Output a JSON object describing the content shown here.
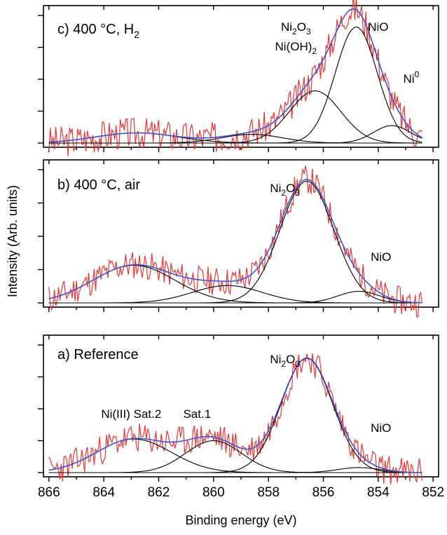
{
  "figure": {
    "xlabel": "Binding energy (eV)",
    "ylabel": "Intensity (Arb. units)"
  },
  "chart_data": [
    {
      "type": "line",
      "panel_label": "c) 400 °C, H",
      "panel_label_sub": "2",
      "xlim": [
        866.2,
        851.8
      ],
      "x_ticks": [
        866,
        864,
        862,
        860,
        858,
        856,
        854,
        852
      ],
      "x_tick_labels": [
        "",
        "",
        "",
        "",
        "",
        "",
        "",
        ""
      ],
      "background": 0.0,
      "peak_max": 4.4,
      "noise_amp": 0.55,
      "noise_seed": 3,
      "series": [
        {
          "center": 854.8,
          "height": 4.0,
          "fwhm": 1.8
        },
        {
          "center": 856.3,
          "height": 1.8,
          "fwhm": 2.2
        },
        {
          "center": 853.5,
          "height": 0.6,
          "fwhm": 1.6
        },
        {
          "center": 858.6,
          "height": 0.3,
          "fwhm": 2.6
        },
        {
          "center": 862.8,
          "height": 0.35,
          "fwhm": 3.5
        }
      ],
      "annotations": [
        {
          "text": "Ni",
          "sub": "2",
          "text2": "O",
          "sub2": "3",
          "x": 857.0,
          "row": 0
        },
        {
          "text": "Ni(OH)",
          "sub": "2",
          "x": 857.0,
          "row": 1
        },
        {
          "text": "NiO",
          "x": 854.0,
          "row": 0
        },
        {
          "text": "Ni",
          "sup": "0",
          "x": 852.8,
          "row": 2
        }
      ]
    },
    {
      "type": "line",
      "panel_label": "b) 400 °C, air",
      "xlim": [
        866.2,
        851.8
      ],
      "x_ticks": [
        866,
        864,
        862,
        860,
        858,
        856,
        854,
        852
      ],
      "x_tick_labels": [
        "",
        "",
        "",
        "",
        "",
        "",
        "",
        ""
      ],
      "background": 0.0,
      "peak_max": 4.6,
      "noise_amp": 0.5,
      "noise_seed": 11,
      "series": [
        {
          "center": 856.6,
          "height": 4.2,
          "fwhm": 2.3
        },
        {
          "center": 854.7,
          "height": 0.4,
          "fwhm": 1.8
        },
        {
          "center": 859.5,
          "height": 0.6,
          "fwhm": 3.0
        },
        {
          "center": 862.9,
          "height": 1.3,
          "fwhm": 3.5
        }
      ],
      "annotations": [
        {
          "text": "Ni",
          "sub": "2",
          "text2": "O",
          "sub2": "3",
          "x": 857.4,
          "row": 0
        },
        {
          "text": "NiO",
          "x": 853.9,
          "row": 1
        }
      ]
    },
    {
      "type": "line",
      "panel_label": "a) Reference",
      "xlim": [
        866.2,
        851.8
      ],
      "x_ticks": [
        866,
        864,
        862,
        860,
        858,
        856,
        854,
        852
      ],
      "x_tick_labels": [
        "866",
        "864",
        "862",
        "860",
        "858",
        "856",
        "854",
        "852"
      ],
      "background": 0.0,
      "peak_max": 3.8,
      "noise_amp": 0.45,
      "noise_seed": 23,
      "series": [
        {
          "center": 856.6,
          "height": 3.4,
          "fwhm": 2.2
        },
        {
          "center": 854.7,
          "height": 0.15,
          "fwhm": 1.8
        },
        {
          "center": 860.0,
          "height": 0.95,
          "fwhm": 2.4
        },
        {
          "center": 862.9,
          "height": 1.0,
          "fwhm": 3.2
        }
      ],
      "annotations": [
        {
          "text": "Ni",
          "sub": "2",
          "text2": "O",
          "sub2": "3",
          "x": 857.4,
          "row": 0
        },
        {
          "text": "NiO",
          "x": 853.9,
          "row": 1
        },
        {
          "text": "Ni(III) Sat.2",
          "x": 863.0,
          "row": 2
        },
        {
          "text": "Sat.1",
          "x": 860.6,
          "row": 2
        }
      ]
    }
  ]
}
